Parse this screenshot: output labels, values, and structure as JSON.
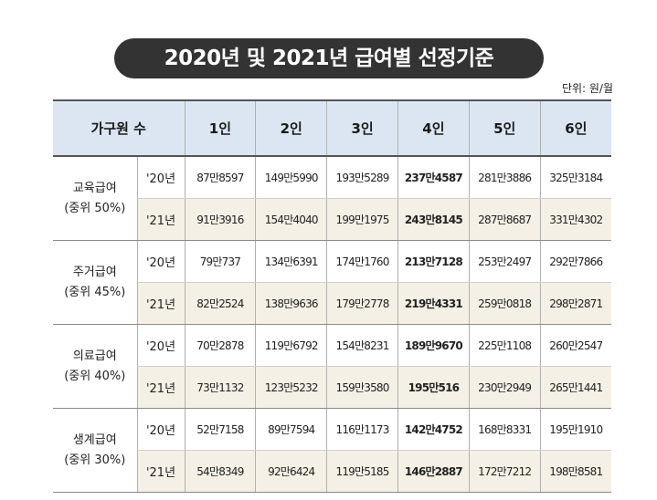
{
  "title": "2020년 및 2021년 급여별 선정기준",
  "unit": "단위: 원/월",
  "table": {
    "header": {
      "category": "가구원 수",
      "cols": [
        "1인",
        "2인",
        "3인",
        "4인",
        "5인",
        "6인"
      ]
    },
    "groups": [
      {
        "name": "교육급여",
        "sub": "(중위 50%)",
        "rows": [
          {
            "year": "'20년",
            "values": [
              "87만8597",
              "149만5990",
              "193만5289",
              "237만4587",
              "281만3886",
              "325만3184"
            ]
          },
          {
            "year": "'21년",
            "values": [
              "91만3916",
              "154만4040",
              "199만1975",
              "243만8145",
              "287만8687",
              "331만4302"
            ]
          }
        ]
      },
      {
        "name": "주거급여",
        "sub": "(중위 45%)",
        "rows": [
          {
            "year": "'20년",
            "values": [
              "79만737",
              "134만6391",
              "174만1760",
              "213만7128",
              "253만2497",
              "292만7866"
            ]
          },
          {
            "year": "'21년",
            "values": [
              "82만2524",
              "138만9636",
              "179만2778",
              "219만4331",
              "259만0818",
              "298만2871"
            ]
          }
        ]
      },
      {
        "name": "의료급여",
        "sub": "(중위 40%)",
        "rows": [
          {
            "year": "'20년",
            "values": [
              "70만2878",
              "119만6792",
              "154만8231",
              "189만9670",
              "225만1108",
              "260만2547"
            ]
          },
          {
            "year": "'21년",
            "values": [
              "73만1132",
              "123만5232",
              "159만3580",
              "195만516",
              "230만2949",
              "265만1441"
            ]
          }
        ]
      },
      {
        "name": "생계급여",
        "sub": "(중위 30%)",
        "rows": [
          {
            "year": "'20년",
            "values": [
              "52만7158",
              "89만7594",
              "116만1173",
              "142만4752",
              "168만8331",
              "195만1910"
            ]
          },
          {
            "year": "'21년",
            "values": [
              "54만8349",
              "92만6424",
              "119만5185",
              "146만2887",
              "172만7212",
              "198만8581"
            ]
          }
        ]
      }
    ]
  }
}
